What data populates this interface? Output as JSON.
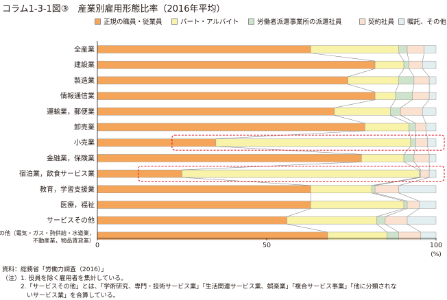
{
  "chart_data": {
    "type": "bar",
    "orientation": "horizontal",
    "stacked": "100%",
    "title": "コラム1-3-1図③　産業別雇用形態比率（2016年平均）",
    "categories": [
      "全産業",
      "建設業",
      "製造業",
      "情報通信業",
      "運輸業，郵便業",
      "卸売業",
      "小売業",
      "金融業，保険業",
      "宿泊業，飲食サービス業",
      "教育，学習支援業",
      "医療，福祉",
      "サービスその他",
      "その他（電気・ガス・熱供給・水道業，不動産業，物品賃貸業）"
    ],
    "category_label_lines": [
      [
        "全産業"
      ],
      [
        "建設業"
      ],
      [
        "製造業"
      ],
      [
        "情報通信業"
      ],
      [
        "運輸業，郵便業"
      ],
      [
        "卸売業"
      ],
      [
        "小売業"
      ],
      [
        "金融業，保険業"
      ],
      [
        "宿泊業，飲食サービス業"
      ],
      [
        "教育，学習支援業"
      ],
      [
        "医療，福祉"
      ],
      [
        "サービスその他"
      ],
      [
        "その他（電気・ガス・熱供給・水道業，",
        "不動産業，物品賃貸業）"
      ]
    ],
    "series": [
      {
        "name": "正規の職員・従業員",
        "color": "#f4a55a",
        "values": [
          63.0,
          82.0,
          74.0,
          82.0,
          70.0,
          79.0,
          35.0,
          78.0,
          25.0,
          63.0,
          63.0,
          56.0,
          68.0
        ]
      },
      {
        "name": "パート・アルバイト",
        "color": "#f8f3a8",
        "values": [
          26.0,
          8.5,
          15.0,
          6.0,
          16.5,
          13.0,
          57.5,
          12.5,
          70.0,
          18.0,
          27.5,
          26.5,
          17.5
        ]
      },
      {
        "name": "労働者派遣事業所の派遣社員",
        "color": "#cde3cb",
        "values": [
          2.5,
          1.5,
          4.5,
          5.0,
          3.0,
          2.0,
          1.5,
          3.0,
          0.5,
          1.0,
          1.0,
          2.5,
          3.5
        ]
      },
      {
        "name": "契約社員",
        "color": "#fbe1cf",
        "values": [
          5.0,
          4.0,
          4.5,
          5.0,
          6.5,
          3.0,
          3.5,
          4.5,
          2.5,
          7.0,
          3.5,
          6.5,
          6.5
        ]
      },
      {
        "name": "嘱託、その他",
        "color": "#e3eef0",
        "values": [
          3.5,
          4.0,
          2.0,
          2.0,
          4.0,
          3.0,
          2.5,
          2.0,
          2.0,
          11.0,
          5.0,
          8.5,
          4.5
        ]
      }
    ],
    "highlighted_categories": [
      "小売業",
      "宿泊業，飲食サービス業"
    ],
    "xlim": [
      0,
      100
    ],
    "xticks": [
      0,
      50,
      100
    ],
    "xunit": "(%)",
    "connector_lines": true,
    "grid": false
  },
  "notes": [
    "資料：総務省「労働力調査（2016）」",
    "（注）1. 役員を除く雇用者を集計している。",
    "　　　2.「サービスその他」とは、「学術研究、専門・技術サービス業」「生活関連サービス業、娯楽業」「複合サービス事業」「他に分類されな",
    "　　　　いサービス業」を合算している。"
  ]
}
